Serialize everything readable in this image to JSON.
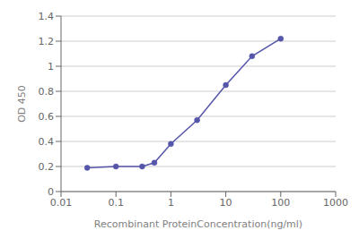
{
  "chart_data": {
    "type": "line",
    "x": [
      0.03,
      0.1,
      0.3,
      0.5,
      1,
      3,
      10,
      30,
      100
    ],
    "values": [
      0.19,
      0.2,
      0.2,
      0.23,
      0.38,
      0.57,
      0.85,
      1.08,
      1.22
    ],
    "xlabel": "Recombinant ProteinConcentration(ng/ml)",
    "ylabel": "OD 450",
    "xlim": [
      0.01,
      1000
    ],
    "xticks": [
      0.01,
      0.1,
      1,
      10,
      100,
      1000
    ],
    "ylim": [
      0,
      1.4
    ],
    "yticks": [
      0,
      0.2,
      0.4,
      0.6,
      0.8,
      1,
      1.2,
      1.4
    ],
    "log": "x",
    "grid": "y",
    "color": "#5555aa",
    "marker": "circle"
  }
}
